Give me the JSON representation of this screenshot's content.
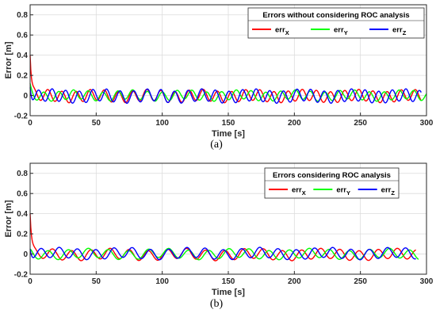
{
  "chart_data": [
    {
      "type": "line",
      "caption": "(a)",
      "xlabel": "Time [s]",
      "ylabel": "Error [m]",
      "xlim": [
        0,
        300
      ],
      "ylim": [
        -0.2,
        0.9
      ],
      "xticks": [
        "0",
        "50",
        "100",
        "150",
        "200",
        "250",
        "300"
      ],
      "yticks": [
        "-0.2",
        "0",
        "0.2",
        "0.4",
        "0.6",
        "0.8"
      ],
      "grid": true,
      "legend_title": "Errors without considering ROC analysis",
      "legend_placement": "top-right",
      "series": [
        {
          "name": "err",
          "sub": "X",
          "color": "#ff0000",
          "x_end": 296,
          "start": 0.4,
          "period": 10.7,
          "amp": 0.055,
          "phase": 0.0,
          "offset": -0.005
        },
        {
          "name": "err",
          "sub": "Y",
          "color": "#00ff00",
          "x_end": 300,
          "start": 0.12,
          "period": 11.2,
          "amp": 0.045,
          "phase": 2.0,
          "offset": 0.0
        },
        {
          "name": "err",
          "sub": "Z",
          "color": "#0000ff",
          "x_end": 296,
          "start": 0.08,
          "period": 10.3,
          "amp": 0.06,
          "phase": 4.0,
          "offset": -0.005
        }
      ]
    },
    {
      "type": "line",
      "caption": "(b)",
      "xlabel": "Time [s]",
      "ylabel": "Error [m]",
      "xlim": [
        0,
        300
      ],
      "ylim": [
        -0.2,
        0.9
      ],
      "xticks": [
        "0",
        "50",
        "100",
        "150",
        "200",
        "250",
        "300"
      ],
      "yticks": [
        "-0.2",
        "0",
        "0.2",
        "0.4",
        "0.6",
        "0.8"
      ],
      "grid": true,
      "legend_title": "Errors considering ROC analysis",
      "legend_placement": "top-right",
      "series": [
        {
          "name": "err",
          "sub": "X",
          "color": "#ff0000",
          "x_end": 292,
          "start": 0.4,
          "period": 14.5,
          "amp": 0.05,
          "phase": 0.5,
          "offset": -0.005
        },
        {
          "name": "err",
          "sub": "Y",
          "color": "#00ff00",
          "x_end": 294,
          "start": 0.05,
          "period": 15.2,
          "amp": 0.045,
          "phase": 2.2,
          "offset": 0.0
        },
        {
          "name": "err",
          "sub": "Z",
          "color": "#0000ff",
          "x_end": 292,
          "start": 0.05,
          "period": 13.8,
          "amp": 0.05,
          "phase": 4.1,
          "offset": 0.005
        }
      ]
    }
  ]
}
